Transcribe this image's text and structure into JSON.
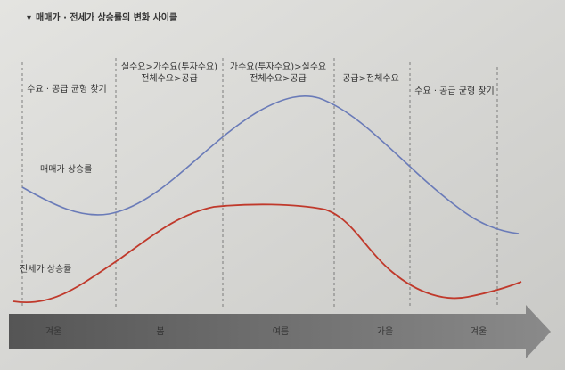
{
  "title": "매매가 · 전세가 상승률의 변화 사이클",
  "phases": [
    {
      "lines": [
        "수요 · 공급 균형 찾기"
      ]
    },
    {
      "lines": [
        "실수요>가수요(투자수요)",
        "전체수요>공급"
      ]
    },
    {
      "lines": [
        "가수요(투자수요)>실수요",
        "전체수요>공급"
      ]
    },
    {
      "lines": [
        "공급>전체수요"
      ]
    },
    {
      "lines": [
        "수요 · 공급 균형 찾기"
      ]
    }
  ],
  "curves": [
    {
      "label": "매매가 상승률"
    },
    {
      "label": "전세가 상승률"
    }
  ],
  "seasons": [
    "겨울",
    "봄",
    "여름",
    "가을",
    "겨울"
  ]
}
